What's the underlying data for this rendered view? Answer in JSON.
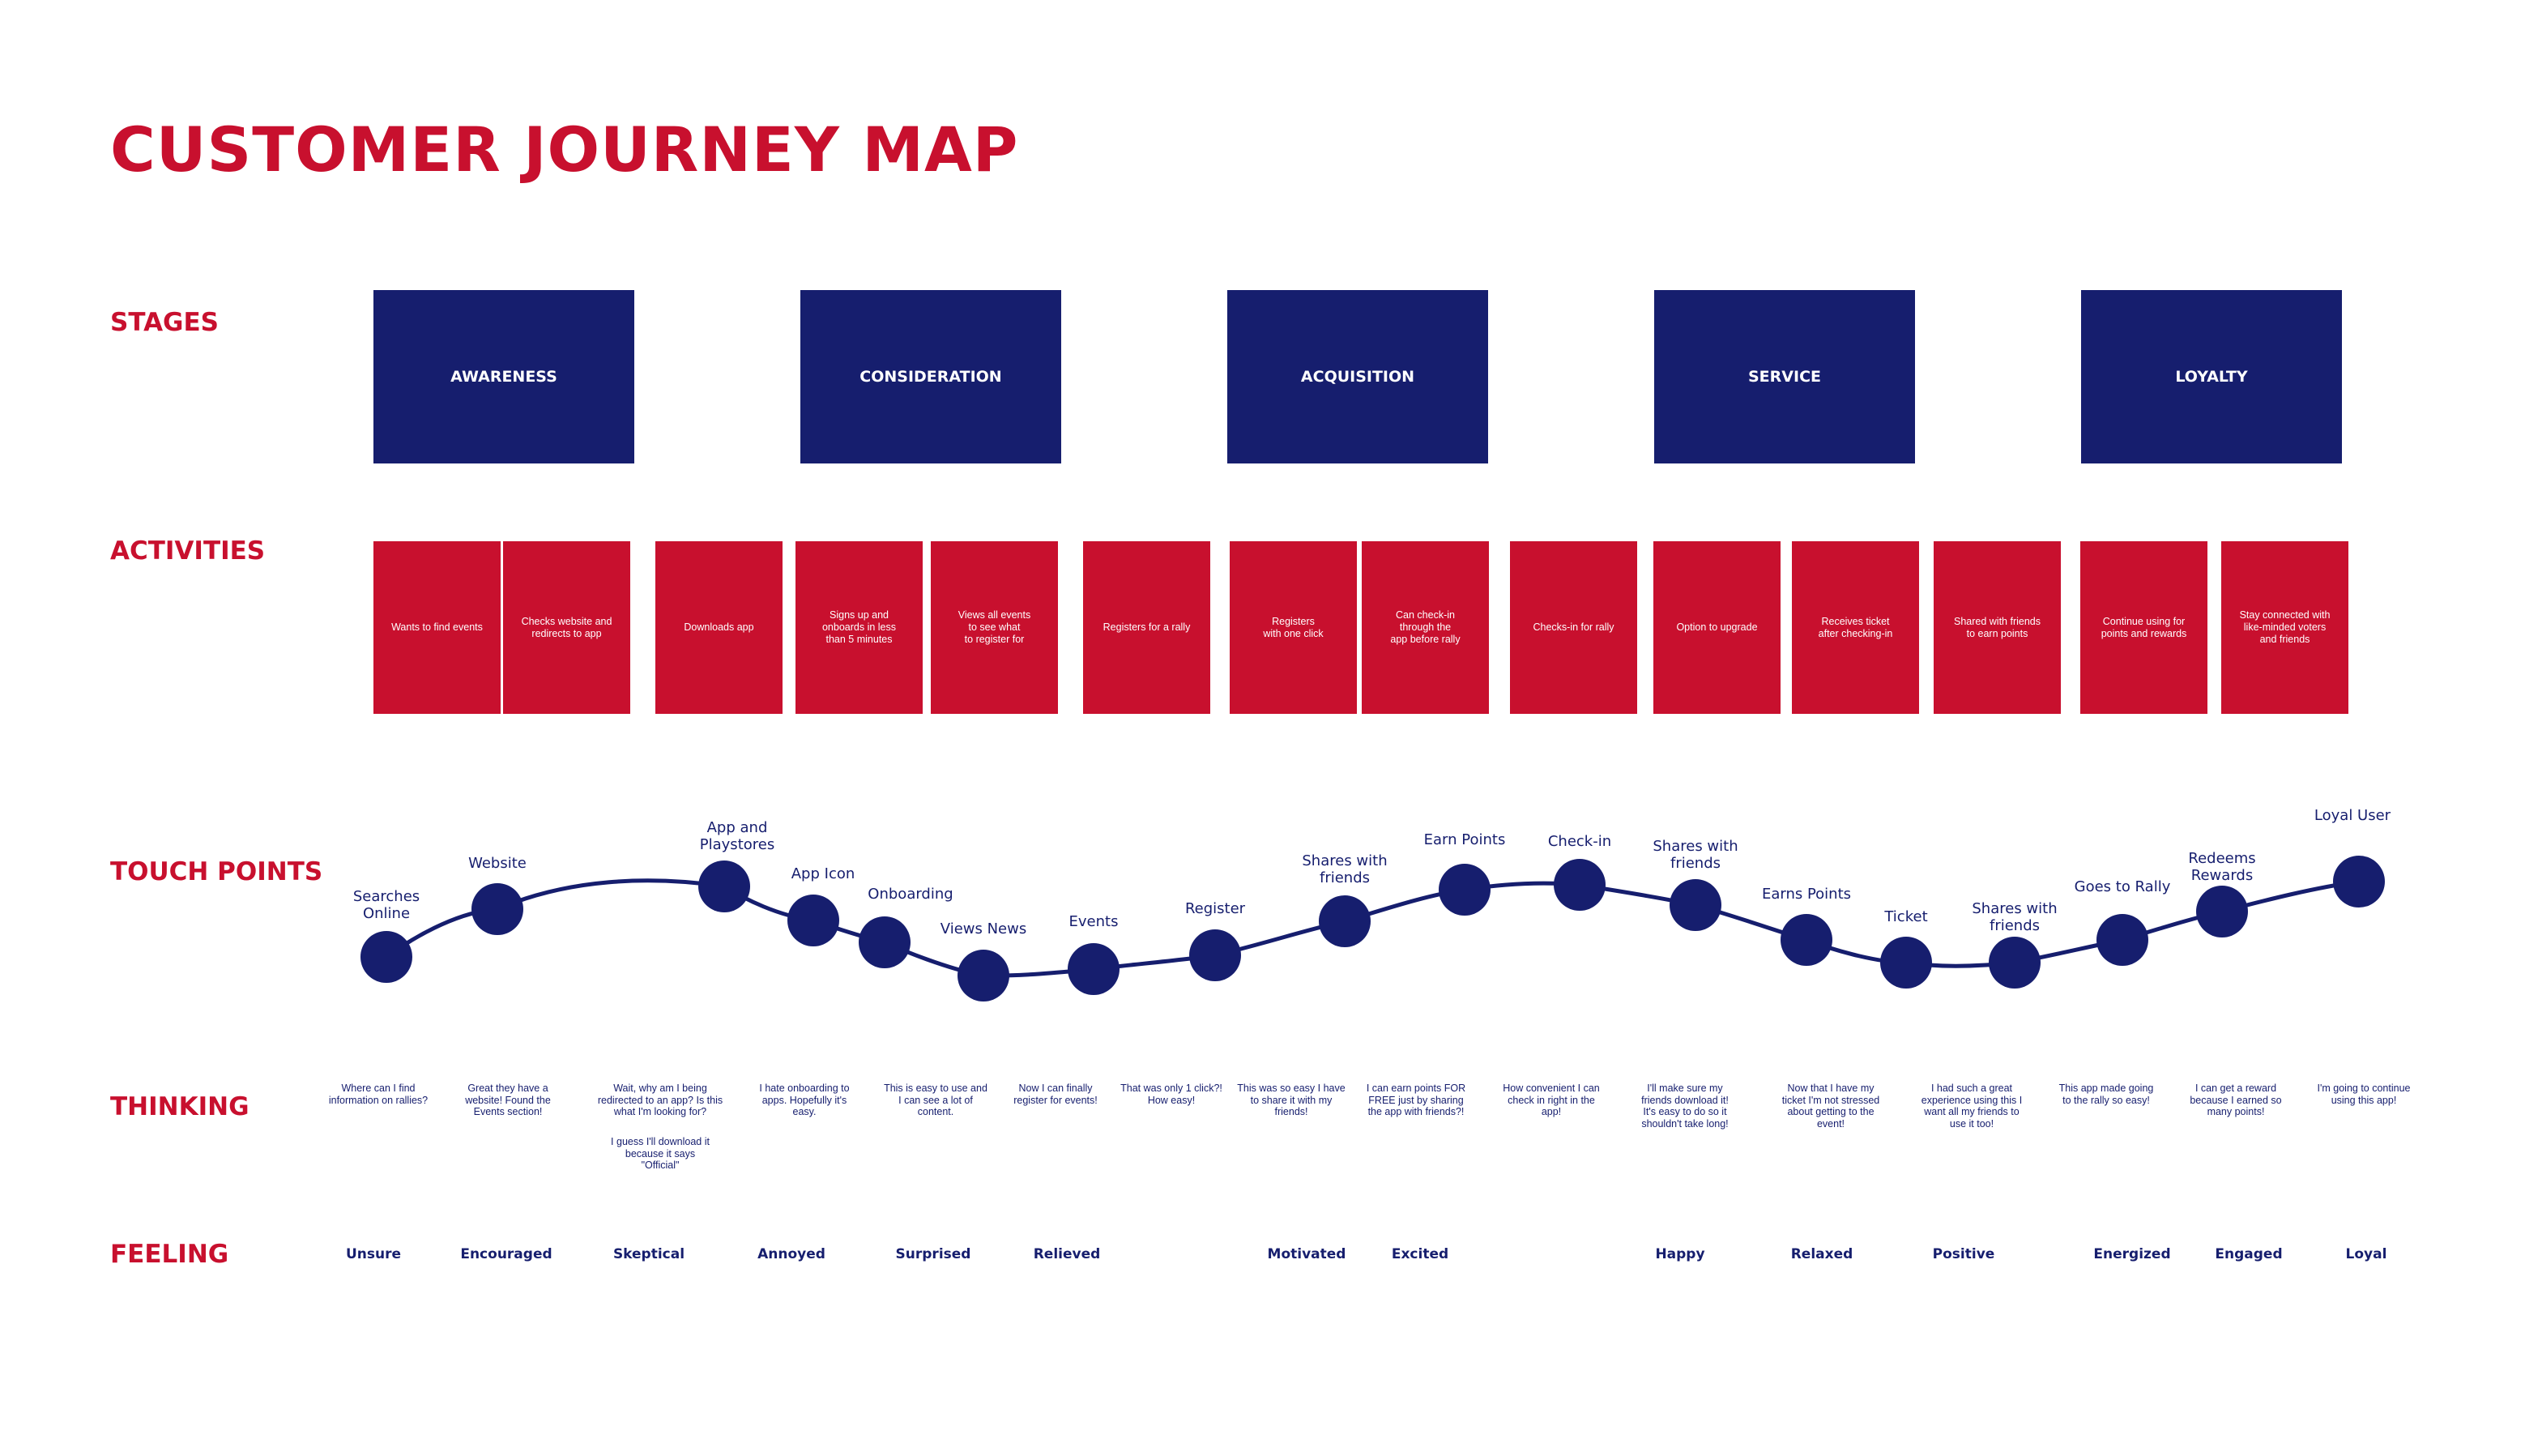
{
  "title": "CUSTOMER JOURNEY MAP",
  "labels": {
    "stages": "STAGES",
    "activities": "ACTIVITIES",
    "touch_points": "TOUCH POINTS",
    "thinking": "THINKING",
    "feeling": "FEELING"
  },
  "stages": [
    "AWARENESS",
    "CONSIDERATION",
    "ACQUISITION",
    "SERVICE",
    "LOYALTY"
  ],
  "activities": [
    "Wants to find events",
    "Checks website and\nredirects to app",
    "Downloads app",
    "Signs up and\nonboards in less\nthan 5 minutes",
    "Views all events\nto see what\nto register for",
    "Registers for a rally",
    "Registers\nwith one click",
    "Can check-in\nthrough the\napp before rally",
    "Checks-in for rally",
    "Option to upgrade",
    "Receives ticket\nafter checking-in",
    "Shared with friends\nto earn points",
    "Continue using for\npoints and rewards",
    "Stay connected with\nlike-minded voters\nand friends"
  ],
  "touch_points": [
    "Searches\nOnline",
    "Website",
    "App and\nPlaystores",
    "App Icon",
    "Onboarding",
    "Views News",
    "Events",
    "Register",
    "Shares with\nfriends",
    "Earn Points",
    "Check-in",
    "Shares with\nfriends",
    "Earns Points",
    "Ticket",
    "Shares with\nfriends",
    "Goes to Rally",
    "Redeems\nRewards",
    "Loyal User"
  ],
  "thinking": [
    "Where can I find\ninformation on rallies?",
    "Great they have a\nwebsite! Found the\nEvents section!",
    "Wait, why am I being\nredirected to an app? Is this\nwhat I'm looking for?",
    "I hate onboarding to\napps. Hopefully it's\neasy.",
    "This is easy to use and\nI can see a lot of\ncontent.",
    "Now I can finally\nregister for events!",
    "That was only 1 click?!\nHow easy!",
    "This was so easy I have\nto share it with my\nfriends!",
    "I can earn points FOR\nFREE just by sharing\nthe app with friends?!",
    "How convenient I can\ncheck in right in the\napp!",
    "I'll make sure my\nfriends download it!\nIt's easy to do so it\nshouldn't take long!",
    "Now that I have my\nticket I'm not stressed\nabout getting to the\nevent!",
    "I had such a great\nexperience using this I\nwant all my friends to\nuse it too!",
    "This app made going\nto the rally so easy!",
    "I can get a reward\nbecause I earned so\nmany points!",
    "I'm going to continue\nusing this app!"
  ],
  "thinking_extra": "I guess I'll download it\nbecause it says\n\"Official\"",
  "feeling": [
    "Unsure",
    "Encouraged",
    "Skeptical",
    "Annoyed",
    "Surprised",
    "Relieved",
    "Motivated",
    "Excited",
    "Happy",
    "Relaxed",
    "Positive",
    "Energized",
    "Engaged",
    "Loyal"
  ],
  "colors": {
    "accent_red": "#c8102e",
    "navy": "#161e6e"
  }
}
